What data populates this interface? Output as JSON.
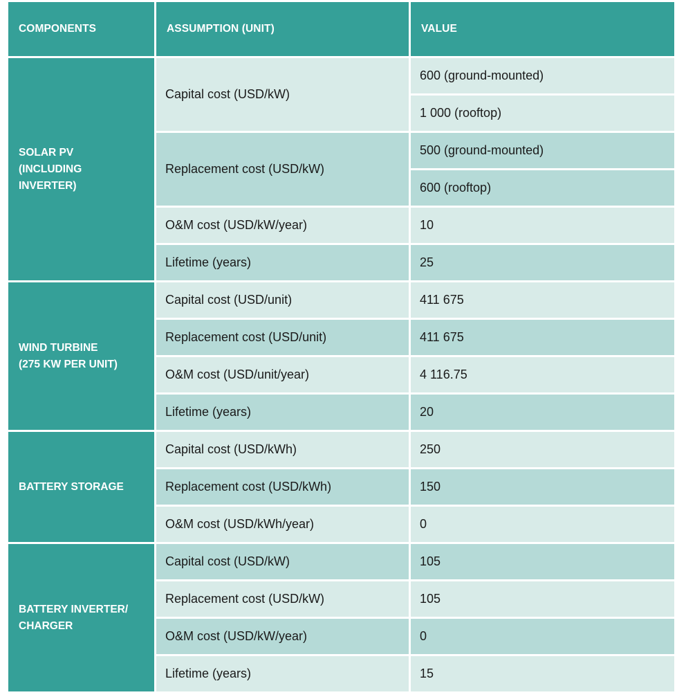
{
  "table": {
    "headers": {
      "components": "COMPONENTS",
      "assumption": "ASSUMPTION (UNIT)",
      "value": "VALUE"
    },
    "colors": {
      "header_bg": "#35a098",
      "header_text": "#ffffff",
      "row_light": "#d8ebe8",
      "row_dark": "#b5dad7",
      "body_text": "#1a1a1a"
    },
    "sections": [
      {
        "component": "SOLAR PV\n(INCLUDING\nINVERTER)",
        "rows": [
          {
            "assumption": "Capital cost (USD/kW)",
            "values": [
              "600 (ground-mounted)",
              "1 000 (rooftop)"
            ]
          },
          {
            "assumption": "Replacement cost (USD/kW)",
            "values": [
              "500 (ground-mounted)",
              "600 (rooftop)"
            ]
          },
          {
            "assumption": "O&M cost (USD/kW/year)",
            "values": [
              "10"
            ]
          },
          {
            "assumption": "Lifetime (years)",
            "values": [
              "25"
            ]
          }
        ]
      },
      {
        "component": "WIND TURBINE\n(275 KW PER UNIT)",
        "rows": [
          {
            "assumption": "Capital cost (USD/unit)",
            "values": [
              "411 675"
            ]
          },
          {
            "assumption": "Replacement cost (USD/unit)",
            "values": [
              "411 675"
            ]
          },
          {
            "assumption": "O&M cost (USD/unit/year)",
            "values": [
              "4 116.75"
            ]
          },
          {
            "assumption": "Lifetime (years)",
            "values": [
              "20"
            ]
          }
        ]
      },
      {
        "component": "BATTERY STORAGE",
        "rows": [
          {
            "assumption": "Capital cost (USD/kWh)",
            "values": [
              "250"
            ]
          },
          {
            "assumption": "Replacement cost (USD/kWh)",
            "values": [
              "150"
            ]
          },
          {
            "assumption": "O&M cost (USD/kWh/year)",
            "values": [
              "0"
            ]
          }
        ]
      },
      {
        "component": "BATTERY INVERTER/\nCHARGER",
        "rows": [
          {
            "assumption": "Capital cost (USD/kW)",
            "values": [
              "105"
            ]
          },
          {
            "assumption": "Replacement cost (USD/kW)",
            "values": [
              "105"
            ]
          },
          {
            "assumption": "O&M cost (USD/kW/year)",
            "values": [
              "0"
            ]
          },
          {
            "assumption": "Lifetime (years)",
            "values": [
              "15"
            ]
          }
        ]
      }
    ]
  }
}
